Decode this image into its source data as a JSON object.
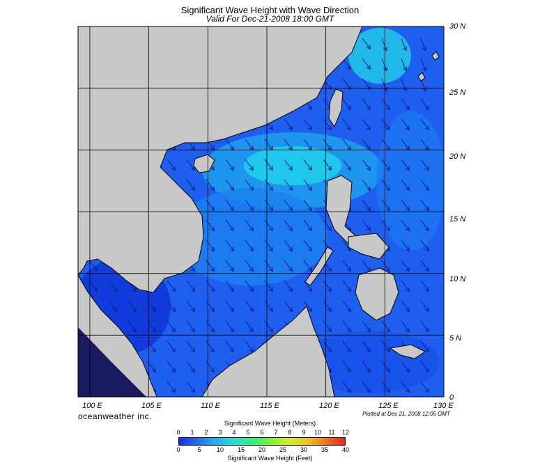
{
  "title": "Significant Wave Height with Wave Direction",
  "subtitle": "Valid For Dec-21-2008 18:00 GMT",
  "map": {
    "lon_range": [
      99,
      130
    ],
    "lat_range": [
      0,
      30
    ],
    "lat_labels": [
      "30 N",
      "25 N",
      "20 N",
      "15 N",
      "10 N",
      "5 N",
      "0"
    ],
    "lon_labels": [
      "100 E",
      "105 E",
      "110 E",
      "115 E",
      "120 E",
      "125 E",
      "130 E"
    ],
    "land_color": "#c8c8c8",
    "sea_color": "#1e5ff0",
    "arrow_color": "#0a1e8c"
  },
  "brand": "oceanweather inc.",
  "plotted": "Plotted at Dec 21, 2008 12:05 GMT",
  "legend": {
    "title_meters": "Significant Wave Height (Meters)",
    "title_feet": "Significant Wave Height (Feet)",
    "meter_ticks": [
      "0",
      "1",
      "2",
      "3",
      "4",
      "5",
      "6",
      "7",
      "8",
      "9",
      "10",
      "11",
      "12"
    ],
    "feet_ticks": [
      "0",
      "5",
      "10",
      "15",
      "20",
      "25",
      "30",
      "35",
      "40"
    ],
    "colors": [
      "#1030e8",
      "#1e6ef0",
      "#20b0f0",
      "#20e0d0",
      "#30f080",
      "#80f030",
      "#d8f020",
      "#f0c020",
      "#f07020",
      "#e82020"
    ]
  }
}
